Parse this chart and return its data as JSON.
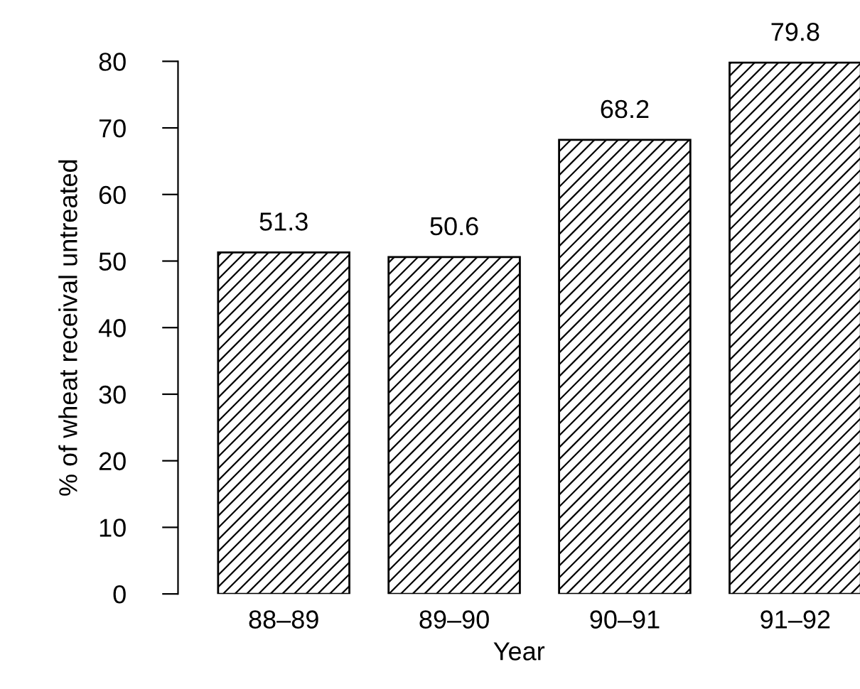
{
  "chart_data": {
    "type": "bar",
    "xlabel": "Year",
    "ylabel": "% of wheat receival untreated",
    "categories": [
      "88–89",
      "89–90",
      "90–91",
      "91–92"
    ],
    "values": [
      51.3,
      50.6,
      68.2,
      79.8
    ],
    "color": "#000000",
    "ylim": [
      0,
      80
    ],
    "yticks": [
      0,
      10,
      20,
      30,
      40,
      50,
      60,
      70,
      80
    ],
    "data_labels": true,
    "grid": false
  }
}
